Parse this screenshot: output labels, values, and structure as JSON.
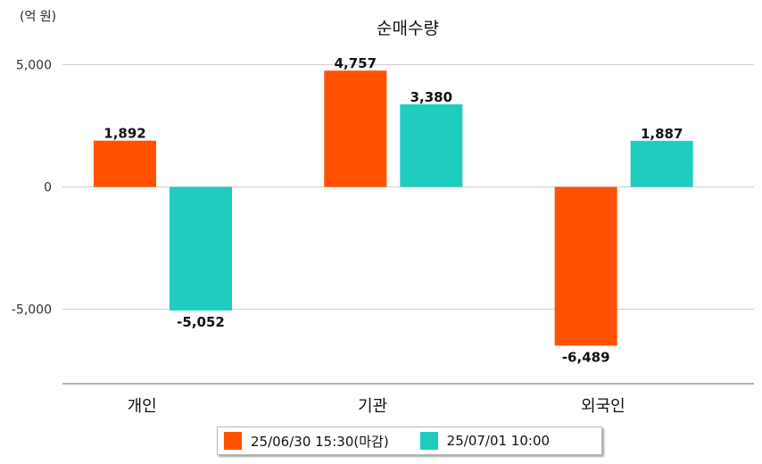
{
  "chart_data": {
    "type": "bar",
    "title": "순매수량",
    "unit_label": "(억 원)",
    "categories": [
      "개인",
      "기관",
      "외국인"
    ],
    "series": [
      {
        "name": "25/06/30 15:30(마감)",
        "color": "#ff5100",
        "values": [
          1892,
          4757,
          -6489
        ]
      },
      {
        "name": "25/07/01 10:00",
        "color": "#1ecdbd",
        "values": [
          -5052,
          3380,
          1887
        ]
      }
    ],
    "data_labels": [
      [
        "1,892",
        "4,757",
        "-6,489"
      ],
      [
        "-5,052",
        "3,380",
        "1,887"
      ]
    ],
    "yticks": [
      5000,
      0,
      -5000
    ],
    "ytick_labels": [
      "5,000",
      "0",
      "-5,000"
    ],
    "ylim": [
      -8000,
      5000
    ],
    "grid": true,
    "legend_position": "bottom"
  }
}
